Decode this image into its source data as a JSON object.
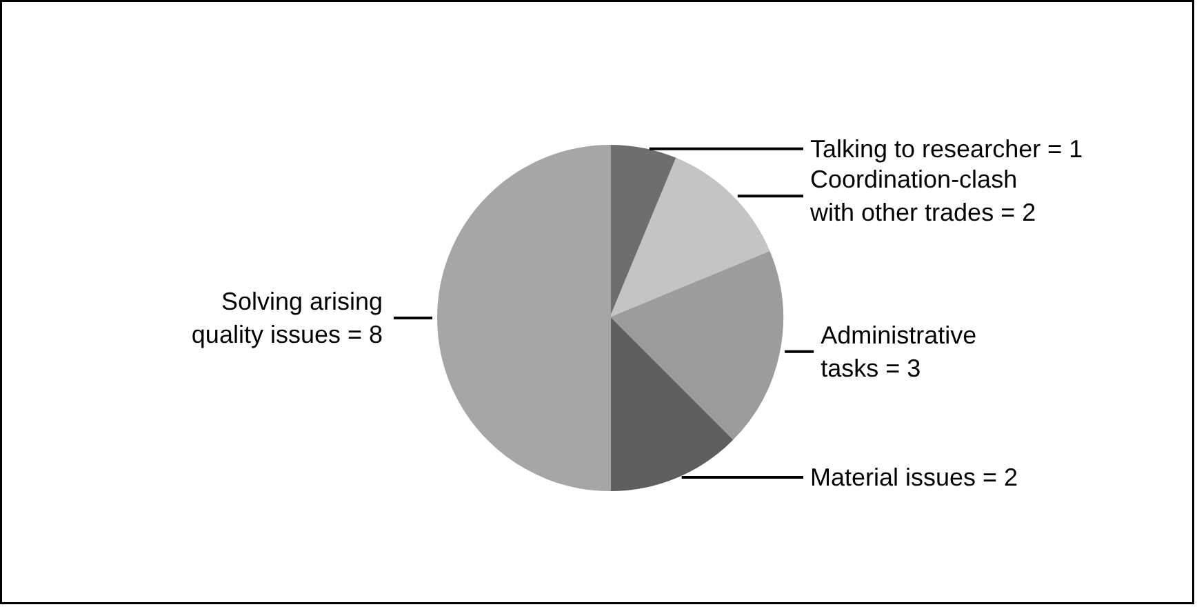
{
  "chart_data": {
    "type": "pie",
    "categories": [
      "Talking to researcher = 1",
      "Coordination-clash\nwith other trades = 2",
      "Administrative\ntasks = 3",
      "Material issues = 2",
      "Solving arising\nquality issues = 8"
    ],
    "values": [
      1,
      2,
      3,
      2,
      8
    ],
    "colors": [
      "#6e6e6e",
      "#c4c4c4",
      "#9c9c9c",
      "#5e5e5e",
      "#a6a6a6"
    ]
  }
}
